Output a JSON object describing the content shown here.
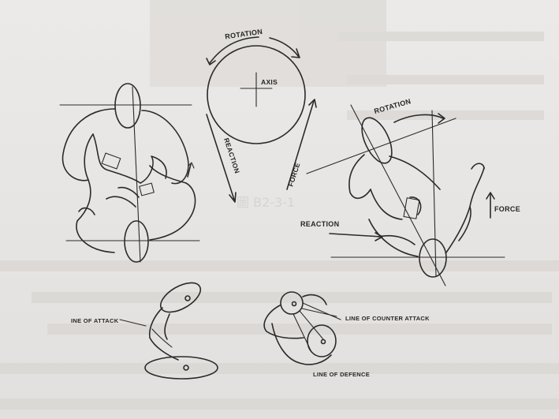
{
  "diagram": {
    "colors": {
      "ink": "#2a2a2a",
      "paper": "#e9e7e5",
      "bleed": "#c9c6c3"
    },
    "labels": {
      "rotation_top": "ROTATION",
      "axis": "AXIS",
      "reaction_left": "REACTION",
      "force_right": "FORCE",
      "rotation_right": "ROTATION",
      "reaction_right": "REACTION",
      "force_far_right": "FORCE",
      "line_of_attack": "INE OF ATTACK",
      "line_of_counter_attack": "LINE OF COUNTER ATTACK",
      "line_of_defence": "LINE OF DEFENCE"
    },
    "bleed_text": {
      "figure_caption": "圖 B2-3-1"
    }
  }
}
